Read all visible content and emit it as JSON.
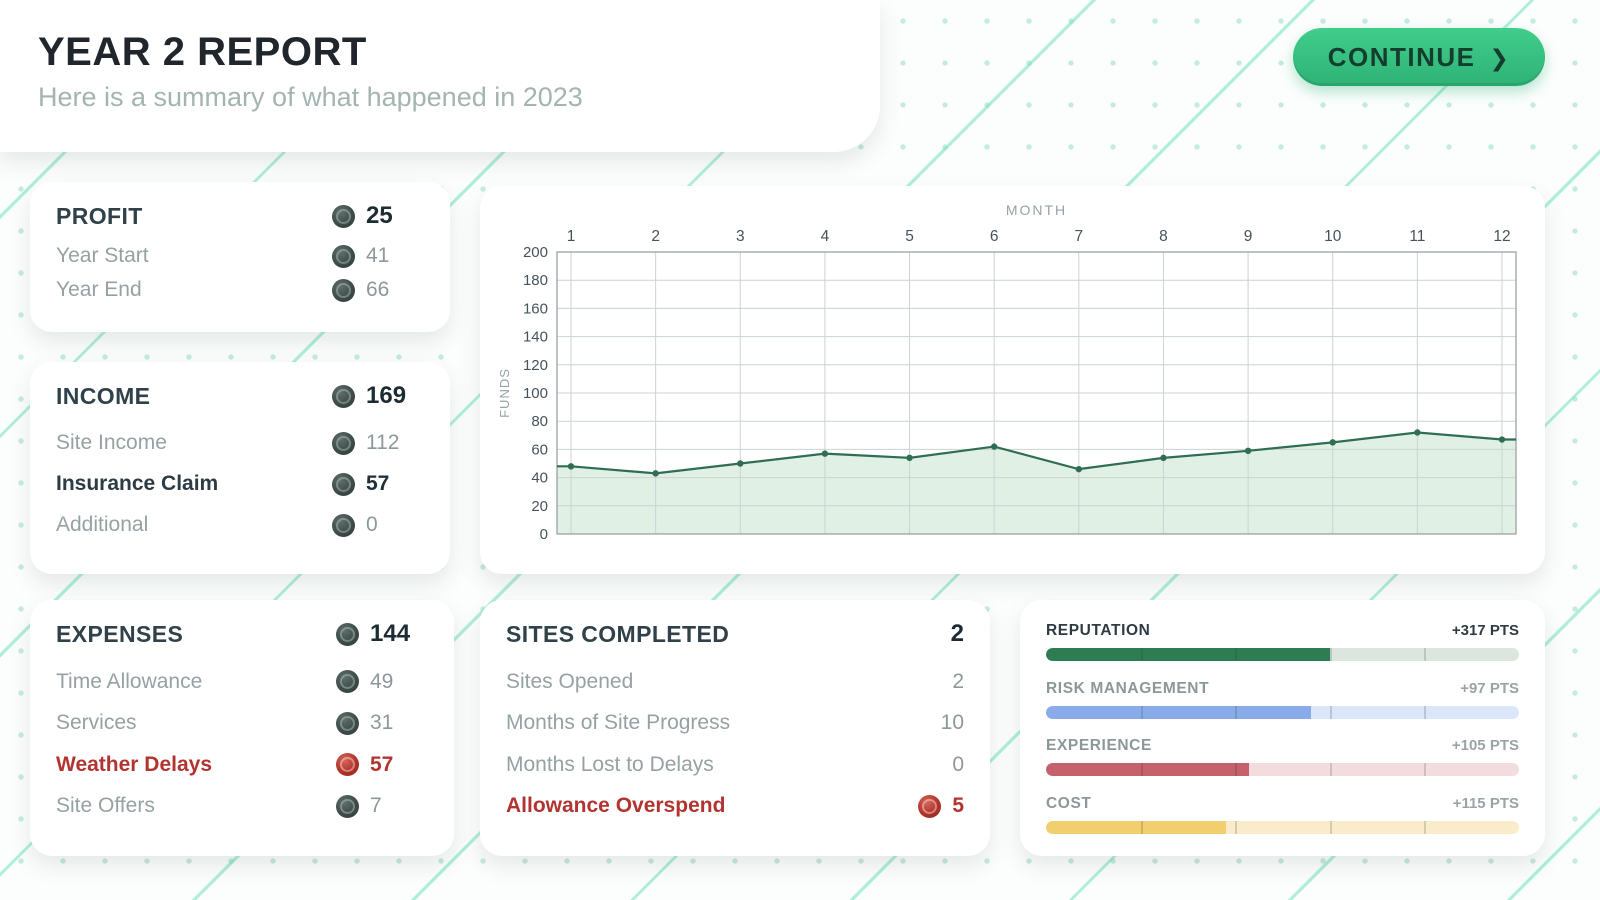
{
  "header": {
    "title": "YEAR 2 REPORT",
    "subtitle": "Here is a summary of what happened in 2023"
  },
  "continue_button": {
    "label": "CONTINUE",
    "chevron": "❯"
  },
  "cards": {
    "profit": {
      "title": "PROFIT",
      "total": "25",
      "rows": [
        {
          "label": "Year Start",
          "value": "41",
          "coin": true
        },
        {
          "label": "Year End",
          "value": "66",
          "coin": true
        }
      ]
    },
    "income": {
      "title": "INCOME",
      "total": "169",
      "rows": [
        {
          "label": "Site Income",
          "value": "112",
          "coin": true
        },
        {
          "label": "Insurance Claim",
          "value": "57",
          "coin": true,
          "bold": true
        },
        {
          "label": "Additional",
          "value": "0",
          "coin": true
        }
      ]
    },
    "expenses": {
      "title": "EXPENSES",
      "total": "144",
      "rows": [
        {
          "label": "Time Allowance",
          "value": "49",
          "coin": true
        },
        {
          "label": "Services",
          "value": "31",
          "coin": true
        },
        {
          "label": "Weather Delays",
          "value": "57",
          "coin": true,
          "negative": true
        },
        {
          "label": "Site Offers",
          "value": "7",
          "coin": true
        }
      ]
    },
    "sites": {
      "title": "SITES COMPLETED",
      "total": "2",
      "rows": [
        {
          "label": "Sites Opened",
          "value": "2",
          "coin": false
        },
        {
          "label": "Months of Site Progress",
          "value": "10",
          "coin": false
        },
        {
          "label": "Months Lost to Delays",
          "value": "0",
          "coin": false
        },
        {
          "label": "Allowance Overspend",
          "value": "5",
          "coin": true,
          "negative": true
        }
      ]
    }
  },
  "stats": [
    {
      "label": "REPUTATION",
      "points": "+317 PTS",
      "fill_pct": 60,
      "fill_color": "#2e7d52",
      "track_color": "#dce6de",
      "emphasis": true
    },
    {
      "label": "RISK MANAGEMENT",
      "points": "+97 PTS",
      "fill_pct": 56,
      "fill_color": "#8aabea",
      "track_color": "#dbe6f8",
      "emphasis": false
    },
    {
      "label": "EXPERIENCE",
      "points": "+105 PTS",
      "fill_pct": 43,
      "fill_color": "#c4616c",
      "track_color": "#f3dcde",
      "emphasis": false
    },
    {
      "label": "COST",
      "points": "+115 PTS",
      "fill_pct": 38,
      "fill_color": "#f1cf6f",
      "track_color": "#faeccb",
      "emphasis": false
    }
  ],
  "chart_data": {
    "type": "line",
    "title": "",
    "xlabel": "MONTH",
    "ylabel": "FUNDS",
    "x": [
      1,
      2,
      3,
      4,
      5,
      6,
      7,
      8,
      9,
      10,
      11,
      12
    ],
    "values": [
      48,
      43,
      50,
      57,
      54,
      62,
      46,
      54,
      59,
      65,
      72,
      67
    ],
    "ylim": [
      0,
      200
    ],
    "ytick_step": 20,
    "grid": true,
    "legend_position": "none",
    "line_color": "#2f6e53",
    "fill_color": "#ddeee1"
  }
}
